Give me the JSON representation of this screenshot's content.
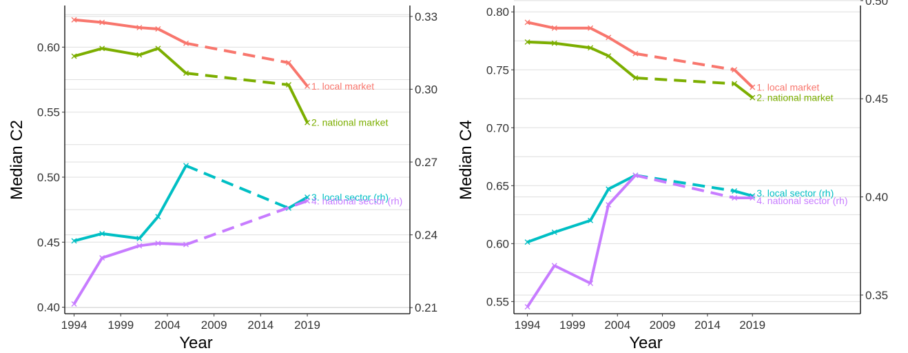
{
  "chart_data": [
    {
      "type": "line",
      "xlabel": "Year",
      "ylabel": "Median C2",
      "x_ticks": [
        1994,
        1999,
        2004,
        2009,
        2014,
        2019
      ],
      "xlim": [
        1993,
        2030
      ],
      "left_axis": {
        "ylim": [
          0.395,
          0.632
        ],
        "ticks": [
          "0.40",
          "0.45",
          "0.50",
          "0.55",
          "0.60"
        ]
      },
      "right_axis": {
        "ylim": [
          0.2075,
          0.3345
        ],
        "ticks": [
          "0.21",
          "0.24",
          "0.27",
          "0.30",
          "0.33"
        ]
      },
      "grid": true,
      "series": [
        {
          "name": "1. local market",
          "axis": "left",
          "color": "#F8766D",
          "x": [
            1994,
            1997,
            2001,
            2003,
            2006,
            2017,
            2019
          ],
          "y": [
            0.621,
            0.619,
            0.615,
            0.614,
            0.603,
            0.588,
            0.57
          ],
          "dashed_segment": [
            2006,
            2017
          ]
        },
        {
          "name": "2. national market",
          "axis": "left",
          "color": "#7CAE00",
          "x": [
            1994,
            1997,
            2001,
            2003,
            2006,
            2017,
            2019
          ],
          "y": [
            0.593,
            0.599,
            0.594,
            0.599,
            0.58,
            0.571,
            0.542
          ],
          "dashed_segment": [
            2006,
            2017
          ]
        },
        {
          "name": "3. local sector (rh)",
          "axis": "right",
          "color": "#00BFC4",
          "x": [
            1994,
            1997,
            2001,
            2003,
            2006,
            2017,
            2019
          ],
          "y": [
            0.2375,
            0.2405,
            0.2385,
            0.2475,
            0.2685,
            0.251,
            0.2555
          ],
          "dashed_segment": [
            2006,
            2017
          ]
        },
        {
          "name": "4. national sector (rh)",
          "axis": "right",
          "color": "#C77CFF",
          "x": [
            1994,
            1997,
            2001,
            2003,
            2006,
            2019
          ],
          "y": [
            0.2115,
            0.2305,
            0.2355,
            0.2365,
            0.236,
            0.254
          ],
          "dashed_segment": [
            2006,
            2019
          ]
        }
      ]
    },
    {
      "type": "line",
      "xlabel": "Year",
      "ylabel": "Median C4",
      "x_ticks": [
        1994,
        1999,
        2004,
        2009,
        2014,
        2019
      ],
      "xlim": [
        1992.5,
        2031
      ],
      "left_axis": {
        "ylim": [
          0.5395,
          0.8055
        ],
        "ticks": [
          "0.55",
          "0.60",
          "0.65",
          "0.70",
          "0.75",
          "0.80"
        ]
      },
      "right_axis": {
        "ylim": [
          0.3405,
          0.4975
        ],
        "ticks": [
          "0.35",
          "0.40",
          "0.45",
          "0.50"
        ]
      },
      "grid": true,
      "series": [
        {
          "name": "1. local market",
          "axis": "left",
          "color": "#F8766D",
          "x": [
            1994,
            1997,
            2001,
            2003,
            2006,
            2017,
            2019
          ],
          "y": [
            0.791,
            0.786,
            0.786,
            0.778,
            0.764,
            0.75,
            0.735
          ],
          "dashed_segment": [
            2006,
            2017
          ]
        },
        {
          "name": "2. national market",
          "axis": "left",
          "color": "#7CAE00",
          "x": [
            1994,
            1997,
            2001,
            2003,
            2006,
            2017,
            2019
          ],
          "y": [
            0.774,
            0.773,
            0.769,
            0.762,
            0.743,
            0.738,
            0.726
          ],
          "dashed_segment": [
            2006,
            2017
          ]
        },
        {
          "name": "3. local sector (rh)",
          "axis": "right",
          "color": "#00BFC4",
          "x": [
            1994,
            1997,
            2001,
            2003,
            2006,
            2017,
            2019
          ],
          "y": [
            0.377,
            0.382,
            0.388,
            0.404,
            0.411,
            0.403,
            0.4005
          ],
          "dashed_segment": [
            2006,
            2017
          ]
        },
        {
          "name": "4. national sector (rh)",
          "axis": "right",
          "color": "#C77CFF",
          "x": [
            1994,
            1997,
            2001,
            2003,
            2006,
            2017,
            2019
          ],
          "y": [
            0.344,
            0.365,
            0.356,
            0.396,
            0.411,
            0.3995,
            0.3995
          ],
          "dashed_segment": [
            2006,
            2017
          ]
        }
      ]
    }
  ]
}
